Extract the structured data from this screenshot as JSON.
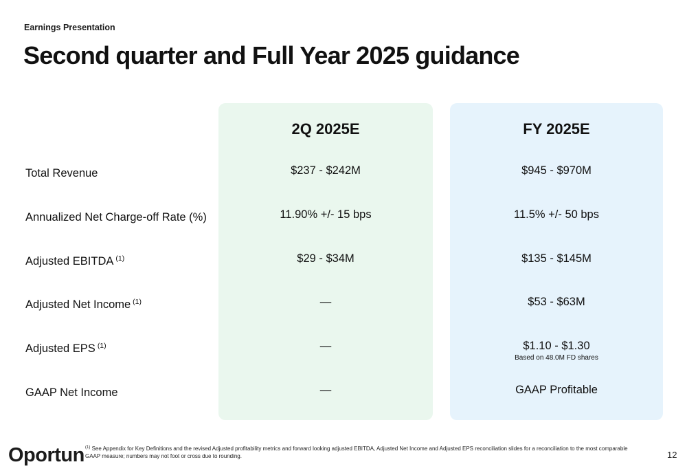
{
  "header": {
    "eyebrow": "Earnings Presentation",
    "title": "Second quarter and Full Year 2025 guidance"
  },
  "columns": {
    "q": "2Q 2025E",
    "fy": "FY 2025E"
  },
  "rows": [
    {
      "label": "Total Revenue",
      "sup": "",
      "q": "$237 - $242M",
      "fy": "$945 - $970M"
    },
    {
      "label": "Annualized Net Charge-off Rate (%)",
      "sup": "",
      "q": "11.90% +/- 15 bps",
      "fy": "11.5% +/- 50 bps"
    },
    {
      "label": "Adjusted EBITDA",
      "sup": "(1)",
      "q": "$29 - $34M",
      "fy": "$135 - $145M"
    },
    {
      "label": "Adjusted Net Income",
      "sup": "(1)",
      "q": "—",
      "fy": "$53 - $63M"
    },
    {
      "label": "Adjusted EPS",
      "sup": "(1)",
      "q": "—",
      "fy": "$1.10 - $1.30"
    },
    {
      "label": "GAAP Net Income",
      "sup": "",
      "q": "—",
      "fy": "GAAP Profitable"
    }
  ],
  "eps_note": "Based on 48.0M FD shares",
  "footer": {
    "logo": "Oportun",
    "footnote_marker": "(1)",
    "footnote": "See Appendix for Key Definitions and the revised Adjusted profitability metrics and forward looking adjusted EBITDA, Adjusted Net Income and Adjusted EPS reconciliation slides for a reconciliation to the most comparable GAAP measure; numbers may not foot or cross due to rounding.",
    "page_number": "12"
  },
  "colors": {
    "quarter_bg": "#eaf7ee",
    "full_year_bg": "#e6f3fc",
    "logo_green": "#2fa84f"
  }
}
